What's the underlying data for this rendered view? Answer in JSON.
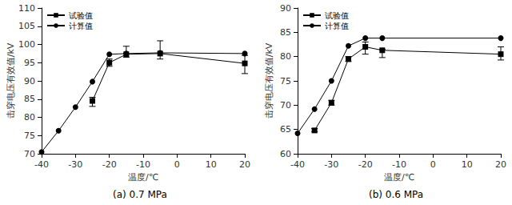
{
  "chart_data": [
    {
      "type": "line",
      "title": "(a) 0.7 MPa",
      "x_label": "温度/℃",
      "y_label": "击穿电压有效值/kV",
      "xlim": [
        -40,
        20
      ],
      "xticks": [
        -40,
        -30,
        -20,
        -10,
        0,
        10,
        20
      ],
      "ylim": [
        70,
        110
      ],
      "yticks": [
        70,
        75,
        80,
        85,
        90,
        95,
        100,
        105,
        110
      ],
      "grid": false,
      "legend": "upper left",
      "series": [
        {
          "name": "试验值",
          "color": "#000000",
          "marker": "square",
          "line_style": "solid",
          "x": [
            -25,
            -20,
            -15,
            -5,
            20
          ],
          "values": [
            84.5,
            95,
            97.3,
            97.5,
            94.8
          ],
          "error_bars": [
            [
              83,
              85.5
            ],
            [
              94,
              96
            ],
            [
              96.5,
              99.5
            ],
            [
              96,
              101
            ],
            [
              92,
              97
            ]
          ]
        },
        {
          "name": "计算值",
          "color": "#000000",
          "marker": "circle",
          "line_style": "solid",
          "x": [
            -40,
            -35,
            -30,
            -25,
            -20,
            -15,
            -5,
            20
          ],
          "values": [
            70.5,
            76.3,
            82.8,
            89.8,
            97.3,
            97.5,
            97.7,
            97.5
          ]
        }
      ]
    },
    {
      "type": "line",
      "title": "(b) 0.6 MPa",
      "x_label": "温度/℃",
      "y_label": "击穿电压有效值/kV",
      "xlim": [
        -40,
        20
      ],
      "xticks": [
        -40,
        -30,
        -20,
        -10,
        0,
        10,
        20
      ],
      "ylim": [
        60,
        90
      ],
      "yticks": [
        60,
        65,
        70,
        75,
        80,
        85,
        90
      ],
      "grid": false,
      "legend": "upper left",
      "series": [
        {
          "name": "试验值",
          "color": "#000000",
          "marker": "square",
          "line_style": "solid",
          "x": [
            -35,
            -30,
            -25,
            -20,
            -15,
            20
          ],
          "values": [
            64.8,
            70.5,
            79.5,
            82,
            81.3,
            80.5
          ],
          "error_bars": [
            [
              64.5,
              65.2
            ],
            [
              70,
              71
            ],
            [
              79,
              80
            ],
            [
              80.5,
              83
            ],
            [
              79.8,
              81.5
            ],
            [
              79.3,
              82
            ]
          ]
        },
        {
          "name": "计算值",
          "color": "#000000",
          "marker": "circle",
          "line_style": "solid",
          "x": [
            -40,
            -35,
            -30,
            -25,
            -20,
            -15,
            20
          ],
          "values": [
            64.2,
            69.2,
            75,
            82.2,
            83.8,
            83.8,
            83.8
          ]
        }
      ]
    }
  ]
}
